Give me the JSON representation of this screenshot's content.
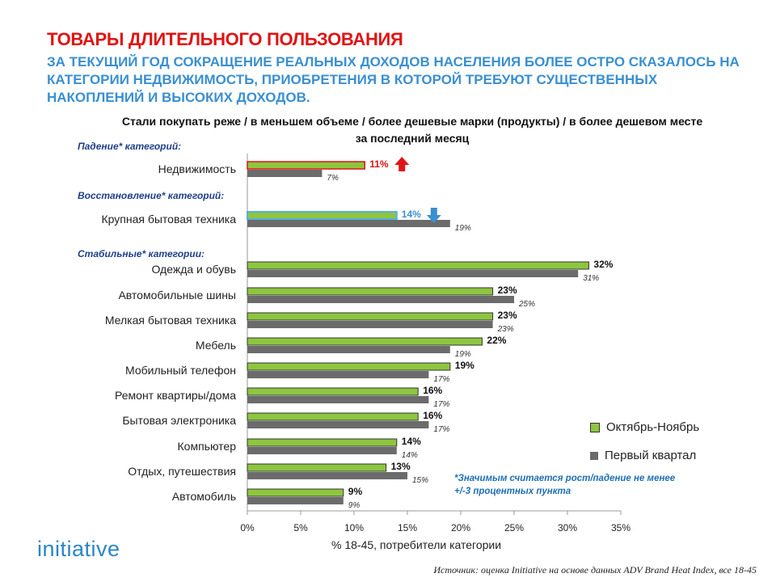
{
  "header": {
    "title": "ТОВАРЫ ДЛИТЕЛЬНОГО ПОЛЬЗОВАНИЯ",
    "subtitle": "ЗА ТЕКУЩИЙ ГОД СОКРАЩЕНИЕ РЕАЛЬНЫХ ДОХОДОВ НАСЕЛЕНИЯ БОЛЕЕ ОСТРО СКАЗАЛОСЬ НА КАТЕГОРИИ НЕДВИЖИМОСТЬ, ПРИОБРЕТЕНИЯ В КОТОРОЙ ТРЕБУЮТ СУЩЕСТВЕННЫХ НАКОПЛЕНИЙ И ВЫСОКИХ ДОХОДОВ."
  },
  "groups": {
    "fall": "Падение* категорий:",
    "recovery": "Восстановление* категорий:",
    "stable": "Стабильные* категории:"
  },
  "footnote": "*Значимым считается рост/падение не менее +/-3 процентных пункта",
  "source": "Источник: оценка Initiative на основе данных ADV Brand Heat Index, все 18-45",
  "logo": "initiative",
  "arrows": {
    "up": "arrow-up-icon",
    "down": "arrow-down-icon"
  },
  "colors": {
    "current": "#8dc63f",
    "previous": "#6b6b6b",
    "fall_outline": "#e01414",
    "recovery_outline": "#5ab0e0",
    "fall_value": "#e01414",
    "recovery_value": "#3a8fd0",
    "arrow_up": "#e01414",
    "arrow_down": "#3a8fd0"
  },
  "chart_data": {
    "type": "bar",
    "orientation": "horizontal",
    "title": "Стали покупать реже / в меньшем объеме / более дешевые марки (продукты) / в более дешевом месте за последний месяц",
    "xlabel": "% 18-45, потребители категории",
    "xlim": [
      0,
      35
    ],
    "xticks": [
      "0%",
      "5%",
      "10%",
      "15%",
      "20%",
      "25%",
      "30%",
      "35%"
    ],
    "legend_position": "right",
    "categories": [
      "Недвижимость",
      "Крупная бытовая техника",
      "Одежда и обувь",
      "Автомобильные шины",
      "Мелкая бытовая техника",
      "Мебель",
      "Мобильный телефон",
      "Ремонт квартиры/дома",
      "Бытовая электроника",
      "Компьютер",
      "Отдых, путешествия",
      "Автомобиль"
    ],
    "category_groups": [
      "fall",
      "recovery",
      "stable",
      "stable",
      "stable",
      "stable",
      "stable",
      "stable",
      "stable",
      "stable",
      "stable",
      "stable"
    ],
    "series": [
      {
        "name": "Октябрь-Ноябрь",
        "values": [
          11,
          14,
          32,
          23,
          23,
          22,
          19,
          16,
          16,
          14,
          13,
          9
        ]
      },
      {
        "name": "Первый квартал",
        "values": [
          7,
          19,
          31,
          25,
          23,
          19,
          17,
          17,
          17,
          14,
          15,
          9
        ]
      }
    ]
  }
}
